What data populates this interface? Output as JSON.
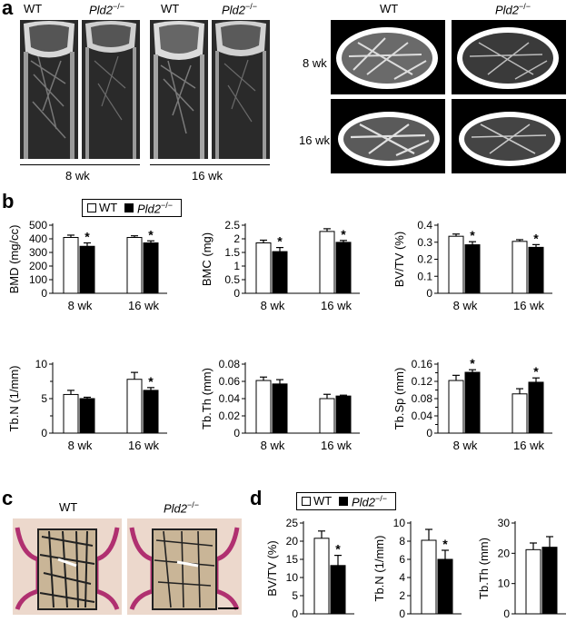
{
  "panels": {
    "a": {
      "letter": "a",
      "wt": "WT",
      "ko": "Pld2",
      "ko_sup": "−/−",
      "age_8": "8 wk",
      "age_16": "16 wk"
    },
    "b": {
      "letter": "b",
      "legend_wt": "WT",
      "legend_ko": "Pld2",
      "legend_ko_sup": "−/−"
    },
    "c": {
      "letter": "c",
      "wt": "WT",
      "ko": "Pld2",
      "ko_sup": "−/−"
    },
    "d": {
      "letter": "d",
      "legend_wt": "WT",
      "legend_ko": "Pld2",
      "legend_ko_sup": "−/−"
    }
  },
  "colors": {
    "wt_fill": "#ffffff",
    "ko_fill": "#000000"
  },
  "chart_data": [
    {
      "id": "bmd",
      "type": "bar",
      "ylabel": "BMD (mg/cc)",
      "ylim": [
        0,
        500
      ],
      "yticks": [
        0,
        100,
        200,
        300,
        400,
        500
      ],
      "categories": [
        "8 wk",
        "16 wk"
      ],
      "series": [
        {
          "name": "WT",
          "values": [
            410,
            410
          ],
          "err": [
            17,
            12
          ]
        },
        {
          "name": "Pld2−/−",
          "values": [
            345,
            370
          ],
          "err": [
            25,
            15
          ]
        }
      ],
      "sig": [
        false,
        true,
        false,
        true
      ]
    },
    {
      "id": "bmc",
      "type": "bar",
      "ylabel": "BMC (mg)",
      "ylim": [
        0,
        2.5
      ],
      "yticks": [
        "0",
        "0.5",
        "1",
        "1.5",
        "2",
        "2.5"
      ],
      "categories": [
        "8 wk",
        "16 wk"
      ],
      "series": [
        {
          "name": "WT",
          "values": [
            1.85,
            2.27
          ],
          "err": [
            0.1,
            0.1
          ]
        },
        {
          "name": "Pld2−/−",
          "values": [
            1.53,
            1.87
          ],
          "err": [
            0.15,
            0.07
          ]
        }
      ],
      "sig": [
        false,
        true,
        false,
        true
      ]
    },
    {
      "id": "bvtv",
      "type": "bar",
      "ylabel": "BV/TV (%)",
      "ylim": [
        0,
        0.4
      ],
      "yticks": [
        "0",
        "0.1",
        "0.2",
        "0.3",
        "0.4"
      ],
      "categories": [
        "8 wk",
        "16 wk"
      ],
      "series": [
        {
          "name": "WT",
          "values": [
            0.335,
            0.305
          ],
          "err": [
            0.013,
            0.01
          ]
        },
        {
          "name": "Pld2−/−",
          "values": [
            0.285,
            0.27
          ],
          "err": [
            0.018,
            0.016
          ]
        }
      ],
      "sig": [
        false,
        true,
        false,
        true
      ]
    },
    {
      "id": "tbn",
      "type": "bar",
      "ylabel": "Tb.N (1/mm)",
      "ylim": [
        0,
        10
      ],
      "yticks": [
        "0",
        "5",
        "10"
      ],
      "minorticks": [
        2.5,
        7.5
      ],
      "categories": [
        "8 wk",
        "16 wk"
      ],
      "series": [
        {
          "name": "WT",
          "values": [
            5.6,
            7.8
          ],
          "err": [
            0.6,
            1.0
          ]
        },
        {
          "name": "Pld2−/−",
          "values": [
            5.0,
            6.2
          ],
          "err": [
            0.2,
            0.4
          ]
        }
      ],
      "sig": [
        false,
        false,
        false,
        true
      ]
    },
    {
      "id": "tbth",
      "type": "bar",
      "ylabel": "Tb.Th (mm)",
      "ylim": [
        0,
        0.08
      ],
      "yticks": [
        "0",
        "0.02",
        "0.04",
        "0.06",
        "0.08"
      ],
      "categories": [
        "8 wk",
        "16 wk"
      ],
      "series": [
        {
          "name": "WT",
          "values": [
            0.061,
            0.04
          ],
          "err": [
            0.004,
            0.005
          ]
        },
        {
          "name": "Pld2−/−",
          "values": [
            0.057,
            0.043
          ],
          "err": [
            0.005,
            0.001
          ]
        }
      ],
      "sig": [
        false,
        false,
        false,
        false
      ]
    },
    {
      "id": "tbsp",
      "type": "bar",
      "ylabel": "Tb.Sp (mm)",
      "ylim": [
        0,
        0.16
      ],
      "yticks": [
        "0",
        "0.04",
        "0.08",
        "0.12",
        "0.16"
      ],
      "minorticks": [
        0.02,
        0.06,
        0.1,
        0.14
      ],
      "categories": [
        "8 wk",
        "16 wk"
      ],
      "series": [
        {
          "name": "WT",
          "values": [
            0.122,
            0.091
          ],
          "err": [
            0.012,
            0.012
          ]
        },
        {
          "name": "Pld2−/−",
          "values": [
            0.141,
            0.118
          ],
          "err": [
            0.006,
            0.01
          ]
        }
      ],
      "sig": [
        false,
        true,
        false,
        true
      ]
    },
    {
      "id": "d_bvtv",
      "type": "bar",
      "ylabel": "BV/TV (%)",
      "ylim": [
        0,
        25
      ],
      "yticks": [
        "0",
        "5",
        "10",
        "15",
        "20",
        "25"
      ],
      "categories": [
        ""
      ],
      "series": [
        {
          "name": "WT",
          "values": [
            20.8
          ],
          "err": [
            2.0
          ]
        },
        {
          "name": "Pld2−/−",
          "values": [
            13.3
          ],
          "err": [
            2.8
          ]
        }
      ],
      "sig": [
        false,
        true
      ]
    },
    {
      "id": "d_tbn",
      "type": "bar",
      "ylabel": "Tb.N (1/mm)",
      "ylim": [
        0,
        10
      ],
      "yticks": [
        "0",
        "2",
        "4",
        "6",
        "8",
        "10"
      ],
      "categories": [
        ""
      ],
      "series": [
        {
          "name": "WT",
          "values": [
            8.1
          ],
          "err": [
            1.2
          ]
        },
        {
          "name": "Pld2−/−",
          "values": [
            6.0
          ],
          "err": [
            1.0
          ]
        }
      ],
      "sig": [
        false,
        true
      ]
    },
    {
      "id": "d_tbth",
      "type": "bar",
      "ylabel": "Tb.Th (mm)",
      "ylim": [
        0,
        30
      ],
      "yticks": [
        "0",
        "10",
        "20",
        "30"
      ],
      "categories": [
        ""
      ],
      "series": [
        {
          "name": "WT",
          "values": [
            21.2
          ],
          "err": [
            2.2
          ]
        },
        {
          "name": "Pld2−/−",
          "values": [
            22.0
          ],
          "err": [
            3.5
          ]
        }
      ],
      "sig": [
        false,
        false
      ]
    }
  ]
}
